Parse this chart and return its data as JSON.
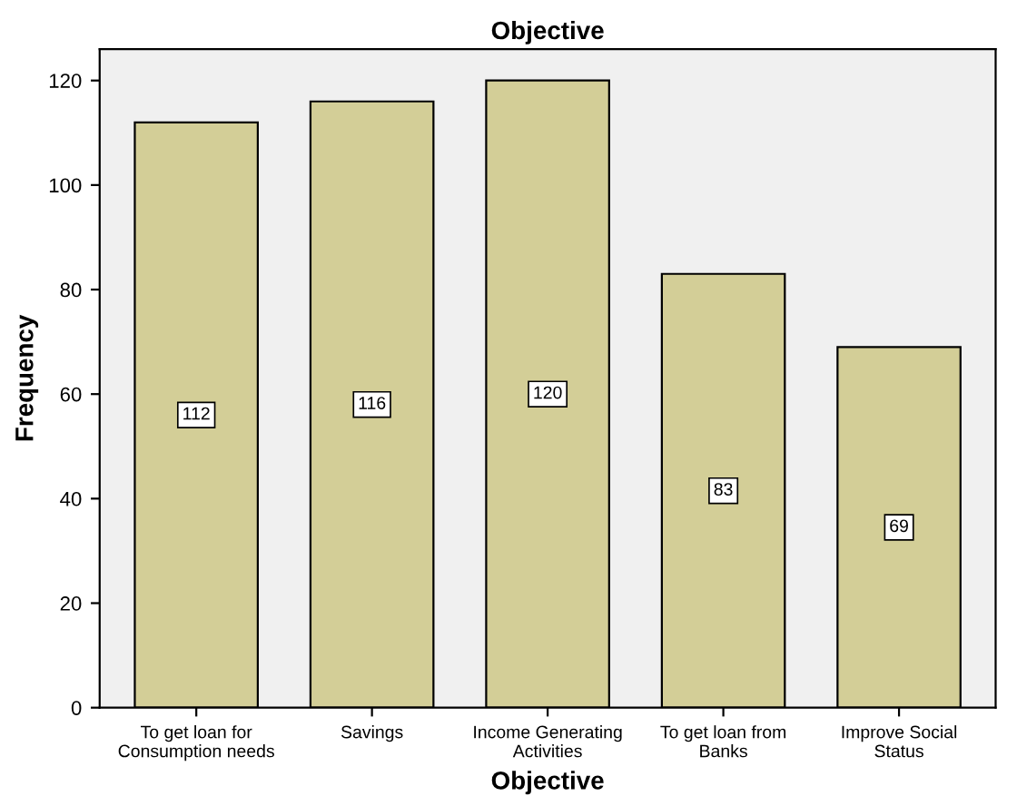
{
  "chart_data": {
    "type": "bar",
    "title": "Objective",
    "xlabel": "Objective",
    "ylabel": "Frequency",
    "categories": [
      "To get loan for Consumption needs",
      "Savings",
      "Income Generating Activities",
      "To get loan from Banks",
      "Improve Social Status"
    ],
    "values": [
      112,
      116,
      120,
      83,
      69
    ],
    "color": "#d3ce97",
    "ylim": [
      0,
      126
    ],
    "yticks": [
      0,
      20,
      40,
      60,
      80,
      100,
      120
    ],
    "grid": false,
    "data_labels": true
  }
}
